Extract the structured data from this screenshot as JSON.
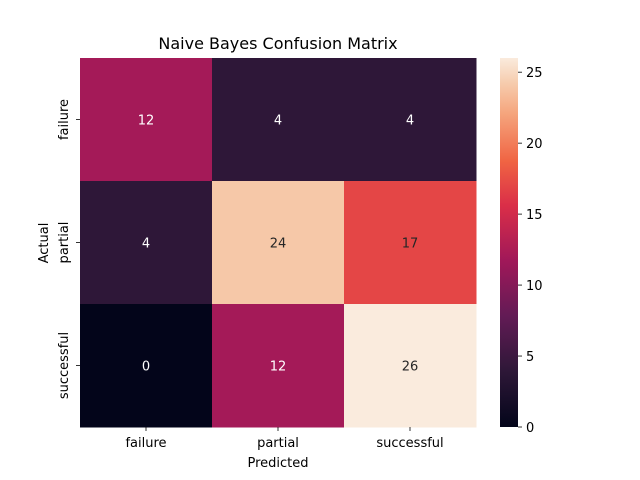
{
  "chart_data": {
    "type": "heatmap",
    "title": "Naive Bayes Confusion Matrix",
    "xlabel": "Predicted",
    "ylabel": "Actual",
    "x_categories": [
      "failure",
      "partial",
      "successful"
    ],
    "y_categories": [
      "failure",
      "partial",
      "successful"
    ],
    "values": [
      [
        12,
        4,
        4
      ],
      [
        4,
        24,
        17
      ],
      [
        0,
        12,
        26
      ]
    ],
    "colorbar": {
      "min": 0,
      "max": 26,
      "ticks": [
        0,
        5,
        10,
        15,
        20,
        25
      ],
      "colormap": "rocket"
    },
    "grid": false
  }
}
